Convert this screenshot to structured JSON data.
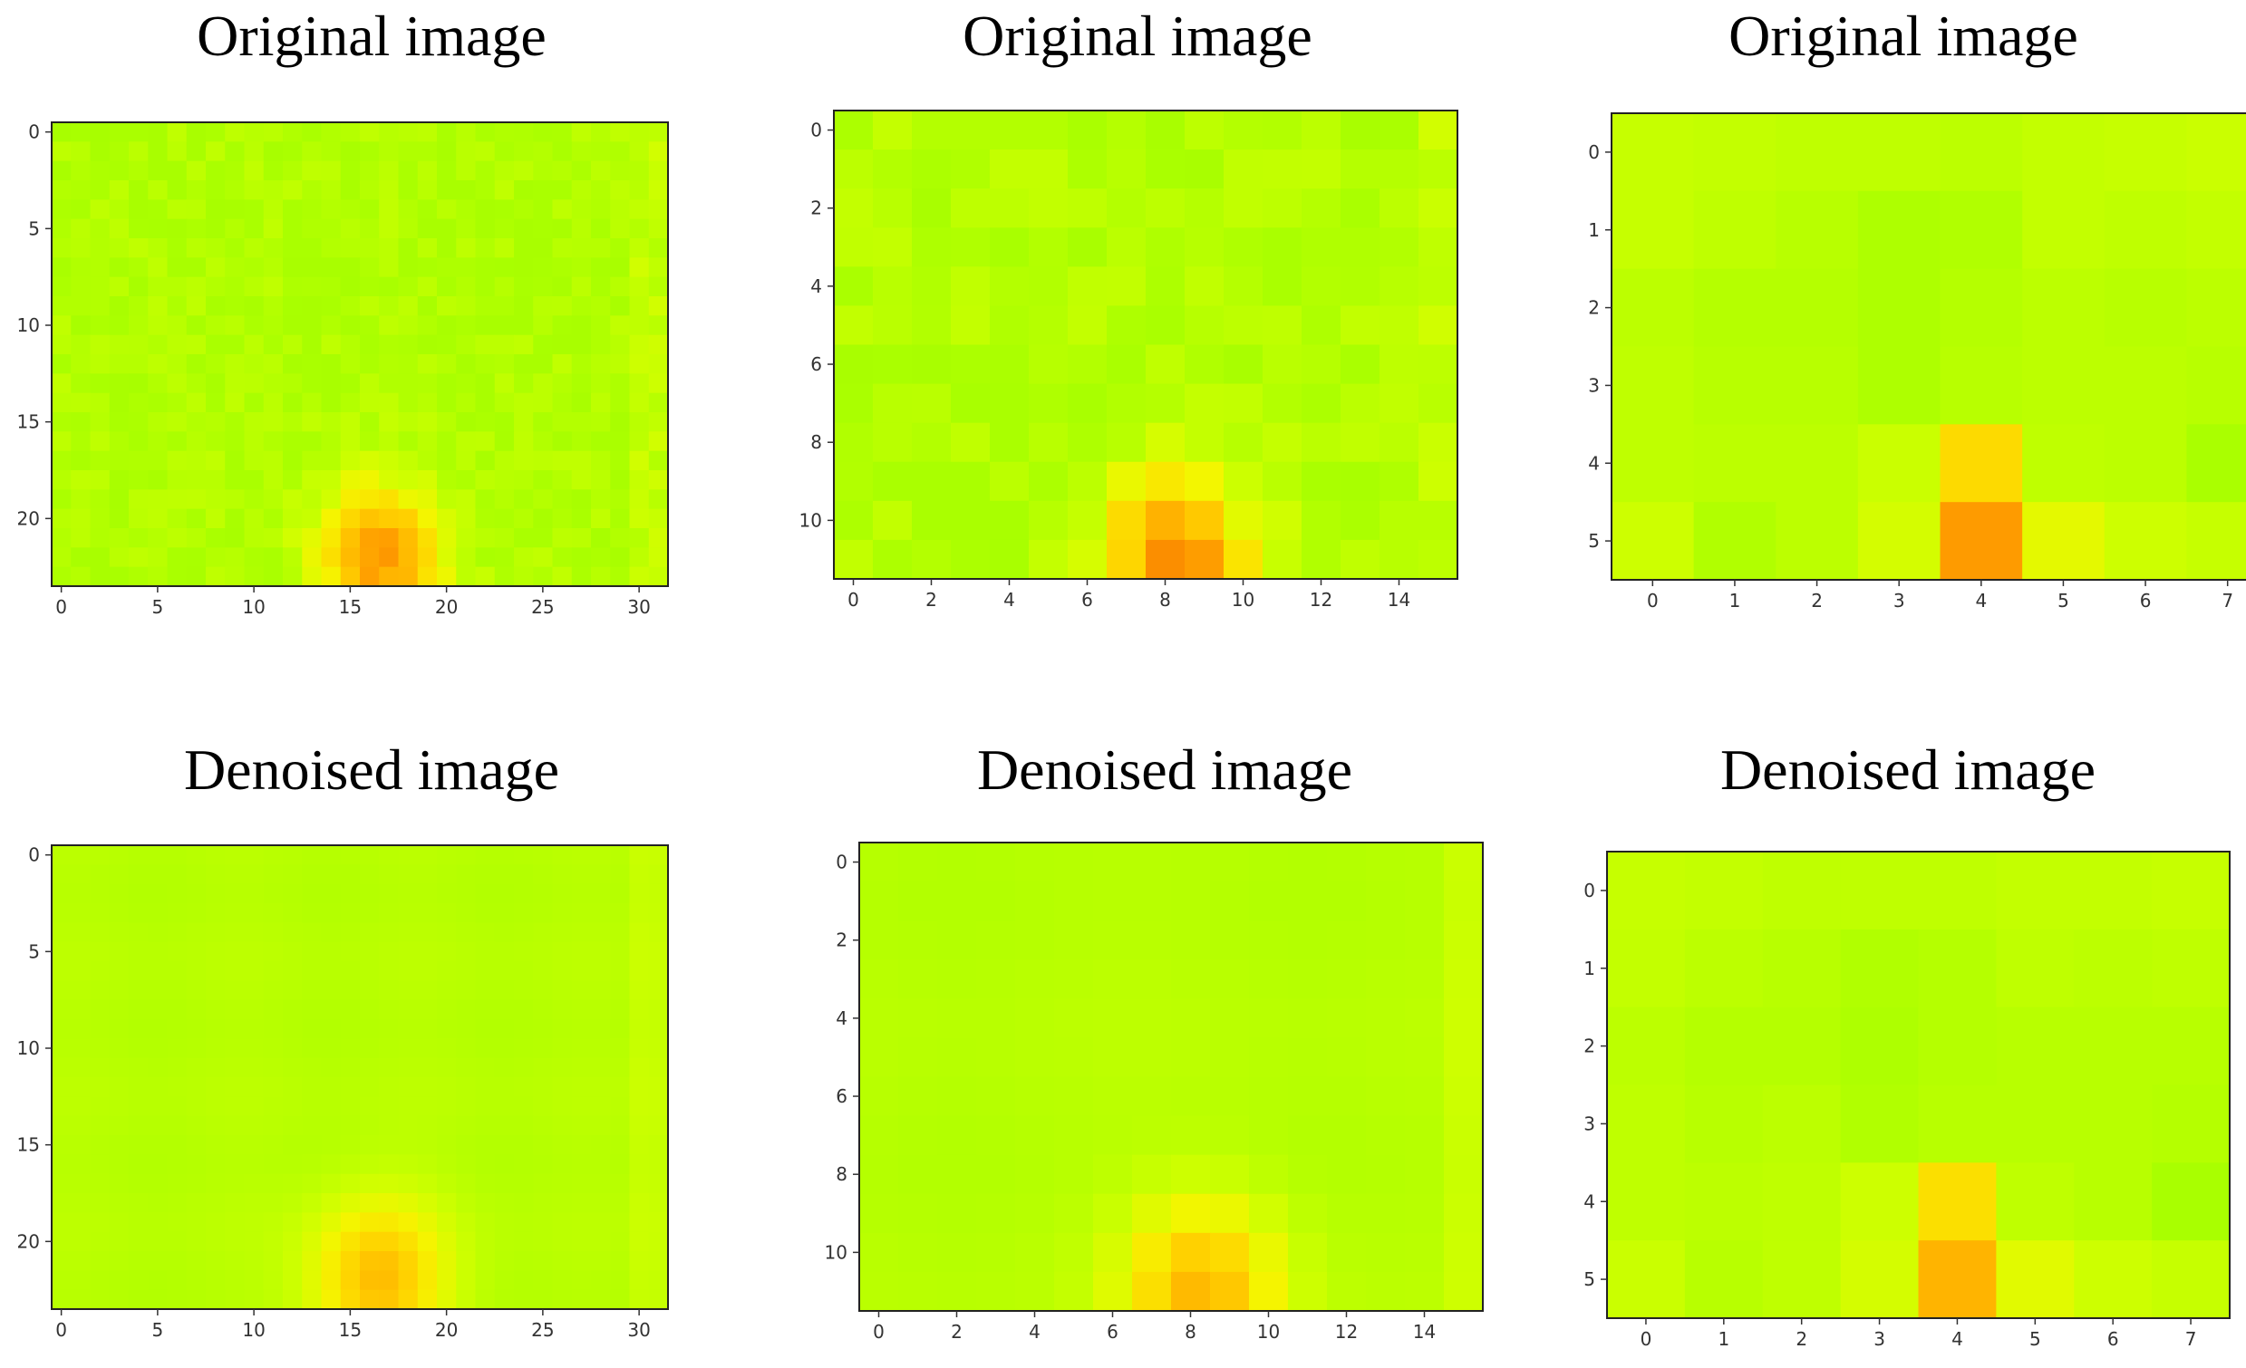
{
  "chart_data": [
    {
      "type": "heatmap",
      "title": "Original image",
      "rows": 24,
      "cols": 32,
      "xticks": [
        "0",
        "5",
        "10",
        "15",
        "20",
        "25",
        "30"
      ],
      "xtick_values": [
        0,
        5,
        10,
        15,
        20,
        25,
        30
      ],
      "yticks": [
        "0",
        "5",
        "10",
        "15",
        "20"
      ],
      "ytick_values": [
        0,
        5,
        10,
        15,
        20
      ],
      "colormap": "yellow-green to orange",
      "noisy": true,
      "hotspot": {
        "row": 22,
        "col": 16.5,
        "peak": 0.82,
        "sigma_rows": 2.6,
        "sigma_cols": 2.2
      },
      "background_level": 0.32
    },
    {
      "type": "heatmap",
      "title": "Original image",
      "rows": 12,
      "cols": 16,
      "xticks": [
        "0",
        "2",
        "4",
        "6",
        "8",
        "10",
        "12",
        "14"
      ],
      "xtick_values": [
        0,
        2,
        4,
        6,
        8,
        10,
        12,
        14
      ],
      "yticks": [
        "0",
        "2",
        "4",
        "6",
        "8",
        "10"
      ],
      "ytick_values": [
        0,
        2,
        4,
        6,
        8,
        10
      ],
      "colormap": "yellow-green to orange",
      "noisy": true,
      "hotspot": {
        "row": 11,
        "col": 8.3,
        "peak": 0.85,
        "sigma_rows": 1.5,
        "sigma_cols": 1.3
      },
      "background_level": 0.33
    },
    {
      "type": "heatmap",
      "title": "Original image",
      "rows": 6,
      "cols": 8,
      "xticks": [
        "0",
        "1",
        "2",
        "3",
        "4",
        "5",
        "6",
        "7"
      ],
      "xtick_values": [
        0,
        1,
        2,
        3,
        4,
        5,
        6,
        7
      ],
      "yticks": [
        "0",
        "1",
        "2",
        "3",
        "4",
        "5"
      ],
      "ytick_values": [
        0,
        1,
        2,
        3,
        4,
        5
      ],
      "colormap": "yellow-green to orange",
      "values": [
        [
          0.38,
          0.37,
          0.36,
          0.36,
          0.35,
          0.37,
          0.38,
          0.39
        ],
        [
          0.38,
          0.36,
          0.34,
          0.31,
          0.32,
          0.37,
          0.36,
          0.37
        ],
        [
          0.35,
          0.33,
          0.33,
          0.31,
          0.33,
          0.35,
          0.34,
          0.35
        ],
        [
          0.36,
          0.34,
          0.34,
          0.31,
          0.34,
          0.35,
          0.35,
          0.34
        ],
        [
          0.36,
          0.35,
          0.35,
          0.39,
          0.62,
          0.36,
          0.35,
          0.3
        ],
        [
          0.4,
          0.32,
          0.35,
          0.42,
          0.82,
          0.47,
          0.4,
          0.38
        ]
      ]
    },
    {
      "type": "heatmap",
      "title": "Denoised image",
      "rows": 24,
      "cols": 32,
      "xticks": [
        "0",
        "5",
        "10",
        "15",
        "20",
        "25",
        "30"
      ],
      "xtick_values": [
        0,
        5,
        10,
        15,
        20,
        25,
        30
      ],
      "yticks": [
        "0",
        "5",
        "10",
        "15",
        "20"
      ],
      "ytick_values": [
        0,
        5,
        10,
        15,
        20
      ],
      "colormap": "yellow-green to orange",
      "noisy": false,
      "hotspot": {
        "row": 22,
        "col": 16.5,
        "peak": 0.72,
        "sigma_rows": 2.8,
        "sigma_cols": 2.4
      },
      "background_level": 0.34
    },
    {
      "type": "heatmap",
      "title": "Denoised image",
      "rows": 12,
      "cols": 16,
      "xticks": [
        "0",
        "2",
        "4",
        "6",
        "8",
        "10",
        "12",
        "14"
      ],
      "xtick_values": [
        0,
        2,
        4,
        6,
        8,
        10,
        12,
        14
      ],
      "yticks": [
        "0",
        "2",
        "4",
        "6",
        "8",
        "10"
      ],
      "ytick_values": [
        0,
        2,
        4,
        6,
        8,
        10
      ],
      "colormap": "yellow-green to orange",
      "noisy": false,
      "hotspot": {
        "row": 11,
        "col": 8.3,
        "peak": 0.72,
        "sigma_rows": 1.6,
        "sigma_cols": 1.4
      },
      "background_level": 0.34
    },
    {
      "type": "heatmap",
      "title": "Denoised image",
      "rows": 6,
      "cols": 8,
      "xticks": [
        "0",
        "1",
        "2",
        "3",
        "4",
        "5",
        "6",
        "7"
      ],
      "xtick_values": [
        0,
        1,
        2,
        3,
        4,
        5,
        6,
        7
      ],
      "yticks": [
        "0",
        "1",
        "2",
        "3",
        "4",
        "5"
      ],
      "ytick_values": [
        0,
        1,
        2,
        3,
        4,
        5
      ],
      "colormap": "yellow-green to orange",
      "values": [
        [
          0.38,
          0.37,
          0.36,
          0.36,
          0.36,
          0.37,
          0.37,
          0.38
        ],
        [
          0.37,
          0.35,
          0.34,
          0.32,
          0.33,
          0.36,
          0.35,
          0.36
        ],
        [
          0.35,
          0.33,
          0.33,
          0.31,
          0.33,
          0.34,
          0.34,
          0.34
        ],
        [
          0.36,
          0.34,
          0.35,
          0.32,
          0.34,
          0.34,
          0.34,
          0.33
        ],
        [
          0.36,
          0.35,
          0.36,
          0.4,
          0.6,
          0.36,
          0.34,
          0.29
        ],
        [
          0.39,
          0.34,
          0.36,
          0.42,
          0.74,
          0.46,
          0.4,
          0.38
        ]
      ]
    }
  ]
}
